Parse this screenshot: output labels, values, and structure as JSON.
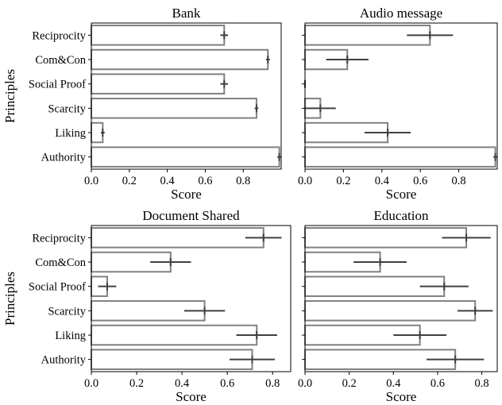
{
  "figure": {
    "ylabel": "Principles",
    "xlabel": "Score"
  },
  "colors": {
    "bar_fill": "#ffffff",
    "bar_edge": "#808080",
    "error_bar": "#404040",
    "axis": "#000000"
  },
  "chart_data": [
    {
      "type": "bar",
      "orientation": "horizontal",
      "title": "Bank",
      "xlabel": "Score",
      "ylabel": "Principles",
      "categories": [
        "Reciprocity",
        "Com&Con",
        "Social Proof",
        "Scarcity",
        "Liking",
        "Authority"
      ],
      "values": [
        0.7,
        0.93,
        0.7,
        0.87,
        0.06,
        0.99
      ],
      "error": [
        0.02,
        0.01,
        0.02,
        0.01,
        0.01,
        0.01
      ],
      "xlim": [
        0,
        1.0
      ],
      "xticks": [
        "0.0",
        "0.2",
        "0.4",
        "0.6",
        "0.8"
      ],
      "show_yticklabels": true
    },
    {
      "type": "bar",
      "orientation": "horizontal",
      "title": "Audio message",
      "xlabel": "Score",
      "ylabel": "",
      "categories": [
        "Reciprocity",
        "Com&Con",
        "Social Proof",
        "Scarcity",
        "Liking",
        "Authority"
      ],
      "values": [
        0.65,
        0.22,
        0.0,
        0.08,
        0.43,
        0.99
      ],
      "error": [
        0.12,
        0.11,
        0.0,
        0.08,
        0.12,
        0.01
      ],
      "xlim": [
        0,
        1.0
      ],
      "xticks": [
        "0.0",
        "0.2",
        "0.4",
        "0.6",
        "0.8"
      ],
      "show_yticklabels": false
    },
    {
      "type": "bar",
      "orientation": "horizontal",
      "title": "Document Shared",
      "xlabel": "Score",
      "ylabel": "Principles",
      "categories": [
        "Reciprocity",
        "Com&Con",
        "Social Proof",
        "Scarcity",
        "Liking",
        "Authority"
      ],
      "values": [
        0.76,
        0.35,
        0.07,
        0.5,
        0.73,
        0.71
      ],
      "error": [
        0.08,
        0.09,
        0.04,
        0.09,
        0.09,
        0.1
      ],
      "xlim": [
        0,
        0.88
      ],
      "xticks": [
        "0.0",
        "0.2",
        "0.4",
        "0.6",
        "0.8"
      ],
      "show_yticklabels": true
    },
    {
      "type": "bar",
      "orientation": "horizontal",
      "title": "Education",
      "xlabel": "Score",
      "ylabel": "",
      "categories": [
        "Reciprocity",
        "Com&Con",
        "Social Proof",
        "Scarcity",
        "Liking",
        "Authority"
      ],
      "values": [
        0.73,
        0.34,
        0.63,
        0.77,
        0.52,
        0.68
      ],
      "error": [
        0.11,
        0.12,
        0.11,
        0.08,
        0.12,
        0.13
      ],
      "xlim": [
        0,
        0.87
      ],
      "xticks": [
        "0.0",
        "0.2",
        "0.4",
        "0.6",
        "0.8"
      ],
      "show_yticklabels": false
    }
  ]
}
